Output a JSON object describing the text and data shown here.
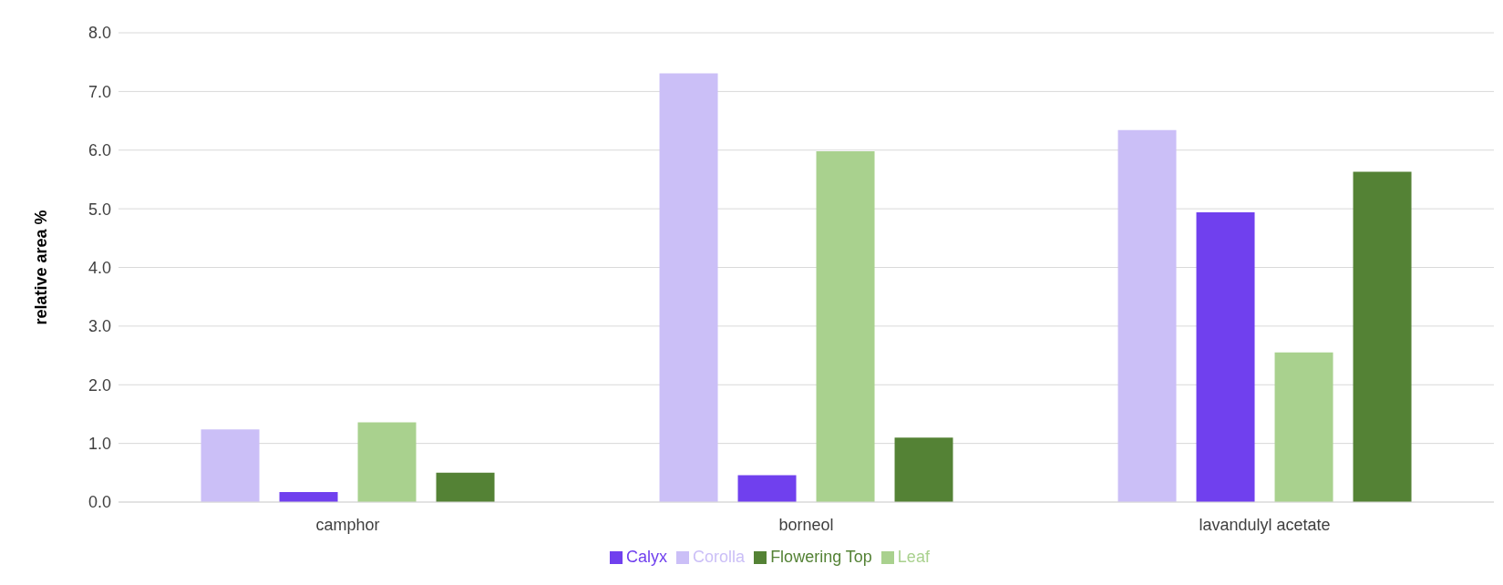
{
  "chart_data": {
    "type": "bar",
    "ylabel": "relative area %",
    "categories": [
      "camphor",
      "borneol",
      "lavandulyl acetate"
    ],
    "series": [
      {
        "name": "Corolla",
        "color": "#cbbff7",
        "values": [
          1.24,
          7.31,
          6.34
        ]
      },
      {
        "name": "Calyx",
        "color": "#7040ee",
        "values": [
          0.17,
          0.46,
          4.94
        ]
      },
      {
        "name": "Leaf",
        "color": "#a9d18e",
        "values": [
          1.36,
          5.98,
          2.55
        ]
      },
      {
        "name": "Flowering Top",
        "color": "#548235",
        "values": [
          0.5,
          1.1,
          5.63
        ]
      }
    ],
    "ylim": [
      0,
      8
    ],
    "yticks": [
      {
        "value": 0,
        "label": "0.0"
      },
      {
        "value": 1,
        "label": "1.0"
      },
      {
        "value": 2,
        "label": "2.0"
      },
      {
        "value": 3,
        "label": "3.0"
      },
      {
        "value": 4,
        "label": "4.0"
      },
      {
        "value": 5,
        "label": "5.0"
      },
      {
        "value": 6,
        "label": "6.0"
      },
      {
        "value": 7,
        "label": "7.0"
      },
      {
        "value": 8,
        "label": "8.0"
      }
    ],
    "grid": "y",
    "legend": "bottom"
  }
}
